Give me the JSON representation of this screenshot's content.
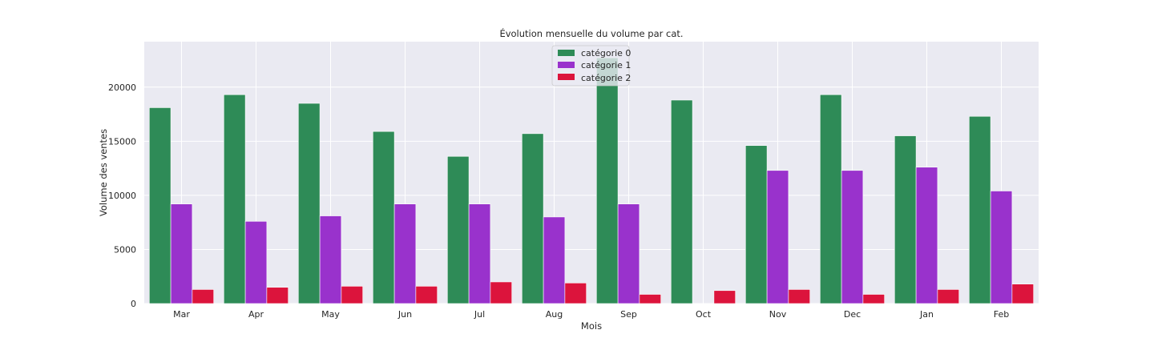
{
  "chart_data": {
    "type": "bar",
    "title": "Évolution mensuelle du volume par cat.",
    "xlabel": "Mois",
    "ylabel": "Volume des ventes",
    "categories": [
      "Mar",
      "Apr",
      "May",
      "Jun",
      "Jul",
      "Aug",
      "Sep",
      "Oct",
      "Nov",
      "Dec",
      "Jan",
      "Feb"
    ],
    "ylim": [
      0,
      24200
    ],
    "yticks": [
      0,
      5000,
      10000,
      15000,
      20000
    ],
    "grid": true,
    "legend_position": "top-center",
    "series": [
      {
        "name": "catégorie 0",
        "color": "#2e8b57",
        "values": [
          18100,
          19300,
          18500,
          15900,
          13600,
          15700,
          22700,
          18800,
          14600,
          19300,
          15500,
          17300
        ]
      },
      {
        "name": "catégorie 1",
        "color": "#9932cc",
        "values": [
          9200,
          7600,
          8100,
          9200,
          9200,
          8000,
          9200,
          0,
          12300,
          12300,
          12600,
          10400
        ]
      },
      {
        "name": "catégorie 2",
        "color": "#dc143c",
        "values": [
          1300,
          1500,
          1600,
          1600,
          2000,
          1900,
          850,
          1200,
          1300,
          850,
          1300,
          1800
        ]
      }
    ]
  }
}
